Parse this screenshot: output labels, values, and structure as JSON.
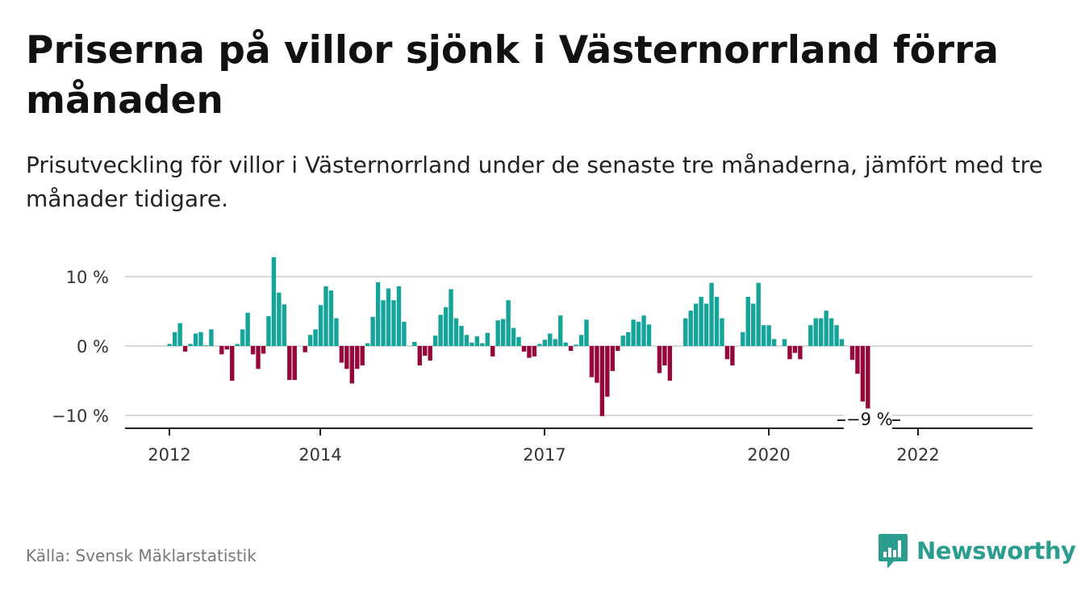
{
  "title": "Priserna på villor sjönk i Västernorrland förra månaden",
  "subtitle": "Prisutveckling för villor i Västernorrland under de senaste tre månaderna, jämfört med tre månader tidigare.",
  "source": "Källa: Svensk Mäklarstatistik",
  "brand": "Newsworthy",
  "colors": {
    "positive": "#14a49a",
    "negative": "#97063a",
    "brand": "#2a9d8f"
  },
  "chart_data": {
    "type": "bar",
    "ylim": [
      -12,
      13
    ],
    "yticks": [
      10,
      0,
      -10
    ],
    "ytick_labels": [
      "10 %",
      "0 %",
      "−10 %"
    ],
    "xticks": [
      "2012",
      "2014",
      "2017",
      "2020",
      "2022"
    ],
    "annotation": "−9 %",
    "values": [
      0.3,
      2.0,
      3.3,
      -0.8,
      0.3,
      1.8,
      2.0,
      0.1,
      2.4,
      0.0,
      -1.2,
      -0.5,
      -5.0,
      0.3,
      2.4,
      4.8,
      -1.2,
      -3.3,
      -1.1,
      4.3,
      12.8,
      7.7,
      6.0,
      -4.9,
      -4.9,
      0.0,
      -0.9,
      1.6,
      2.4,
      5.9,
      8.6,
      8.0,
      4.0,
      -2.4,
      -3.3,
      -5.4,
      -3.3,
      -2.8,
      0.4,
      4.2,
      9.2,
      6.6,
      8.3,
      6.6,
      8.6,
      3.5,
      0.0,
      0.6,
      -2.8,
      -1.4,
      -2.1,
      1.5,
      4.5,
      5.6,
      8.2,
      4.0,
      2.9,
      1.6,
      0.5,
      1.4,
      0.4,
      1.9,
      -1.5,
      3.7,
      3.9,
      6.6,
      2.6,
      1.3,
      -0.8,
      -1.7,
      -1.5,
      0.3,
      0.9,
      1.8,
      1.0,
      4.4,
      0.5,
      -0.7,
      0.2,
      1.6,
      3.8,
      -4.5,
      -5.3,
      -10.1,
      -7.3,
      -3.6,
      -0.7,
      1.5,
      2.0,
      3.8,
      3.5,
      4.4,
      3.1,
      0.0,
      -3.9,
      -2.8,
      -5.0,
      0.0,
      0.0,
      4.0,
      5.1,
      6.1,
      7.1,
      6.1,
      9.1,
      7.1,
      4.0,
      -1.9,
      -2.8,
      0.0,
      2.0,
      7.1,
      6.1,
      9.1,
      3.0,
      3.0,
      1.0,
      0.0,
      1.0,
      -1.9,
      -1.0,
      -1.9,
      0.0,
      3.0,
      4.0,
      4.0,
      5.1,
      4.0,
      3.0,
      1.0,
      0.0,
      -2.0,
      -4.0,
      -8.0,
      -9.0
    ]
  }
}
